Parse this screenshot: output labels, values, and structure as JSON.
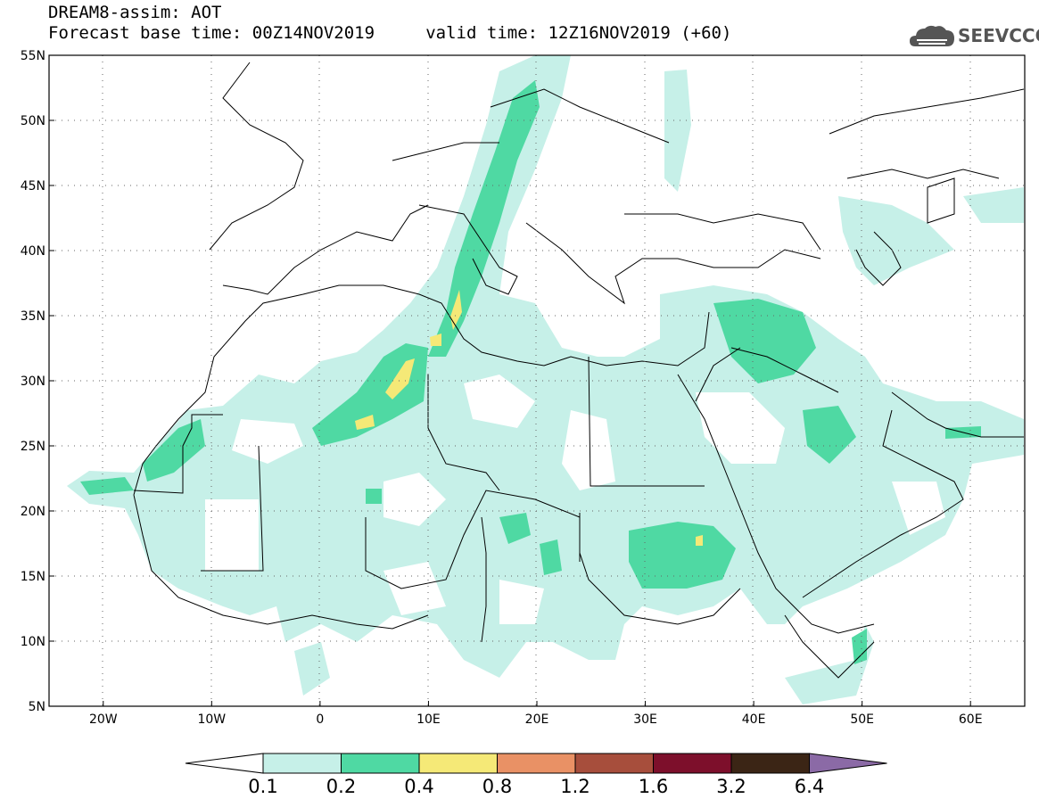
{
  "header": {
    "title_line1": "DREAM8-assim: AOT",
    "title_line2": "Forecast base time: 00Z14NOV2019     valid time: 12Z16NOV2019 (+60)"
  },
  "logo": {
    "text": "SEEVCCC",
    "icon": "cloud-icon",
    "color": "#555555"
  },
  "map": {
    "lat_labels": [
      "55N",
      "50N",
      "45N",
      "40N",
      "35N",
      "30N",
      "25N",
      "20N",
      "15N",
      "10N",
      "5N"
    ],
    "lon_labels": [
      "20W",
      "10W",
      "0",
      "10E",
      "20E",
      "30E",
      "40E",
      "50E",
      "60E"
    ],
    "lon_range": [
      -25,
      65
    ],
    "lat_range": [
      5,
      55
    ],
    "gridlines": true
  },
  "legend": {
    "levels": [
      "0.1",
      "0.2",
      "0.4",
      "0.8",
      "1.2",
      "1.6",
      "3.2",
      "6.4"
    ],
    "colors": [
      "#c6f0e8",
      "#4fd9a3",
      "#f5e977",
      "#e99165",
      "#a74e3c",
      "#7d0f2b",
      "#3b2515",
      "#8b6aa6"
    ]
  }
}
